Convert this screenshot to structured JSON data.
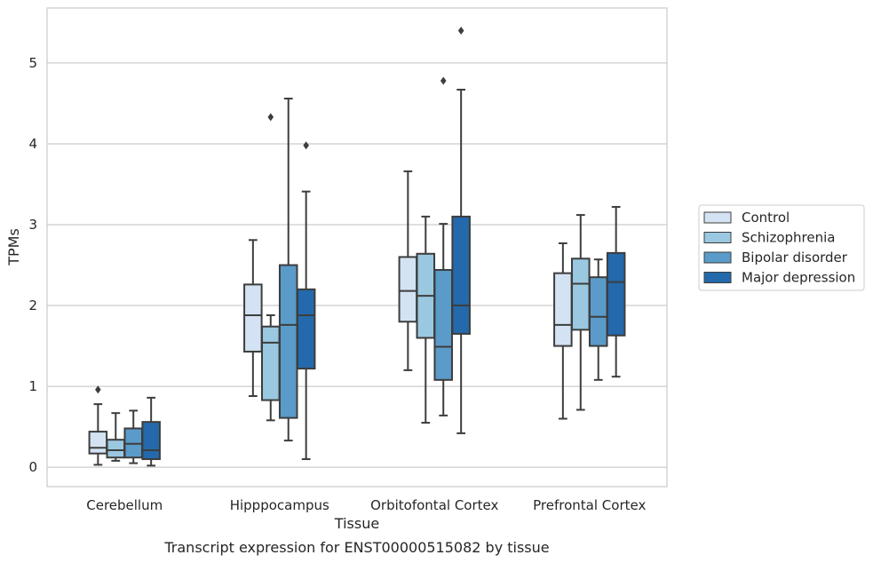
{
  "caption": "Transcript expression for ENST00000515082 by tissue",
  "chart_data": {
    "type": "box",
    "xlabel": "Tissue",
    "ylabel": "TPMs",
    "ylim": [
      -0.24,
      5.68
    ],
    "yticks": [
      0,
      1,
      2,
      3,
      4,
      5
    ],
    "grid": "horizontal",
    "legend_position": "right",
    "categories": [
      "Cerebellum",
      "Hipppocampus",
      "Orbitofontal Cortex",
      "Prefrontal Cortex"
    ],
    "series": [
      {
        "name": "Control",
        "color": "#d3e3f3",
        "boxes": [
          {
            "whisker_low": 0.03,
            "q1": 0.17,
            "median": 0.24,
            "q3": 0.44,
            "whisker_high": 0.78,
            "outliers": [
              0.96
            ]
          },
          {
            "whisker_low": 0.88,
            "q1": 1.43,
            "median": 1.88,
            "q3": 2.26,
            "whisker_high": 2.81,
            "outliers": []
          },
          {
            "whisker_low": 1.2,
            "q1": 1.8,
            "median": 2.18,
            "q3": 2.6,
            "whisker_high": 3.66,
            "outliers": []
          },
          {
            "whisker_low": 0.6,
            "q1": 1.5,
            "median": 1.76,
            "q3": 2.4,
            "whisker_high": 2.77,
            "outliers": []
          }
        ]
      },
      {
        "name": "Schizophrenia",
        "color": "#9ac8e0",
        "boxes": [
          {
            "whisker_low": 0.08,
            "q1": 0.12,
            "median": 0.21,
            "q3": 0.34,
            "whisker_high": 0.67,
            "outliers": []
          },
          {
            "whisker_low": 0.58,
            "q1": 0.83,
            "median": 1.54,
            "q3": 1.74,
            "whisker_high": 1.88,
            "outliers": [
              4.33
            ]
          },
          {
            "whisker_low": 0.55,
            "q1": 1.6,
            "median": 2.12,
            "q3": 2.64,
            "whisker_high": 3.1,
            "outliers": []
          },
          {
            "whisker_low": 0.71,
            "q1": 1.7,
            "median": 2.27,
            "q3": 2.58,
            "whisker_high": 3.12,
            "outliers": []
          }
        ]
      },
      {
        "name": "Bipolar disorder",
        "color": "#5a9bc9",
        "boxes": [
          {
            "whisker_low": 0.05,
            "q1": 0.12,
            "median": 0.29,
            "q3": 0.48,
            "whisker_high": 0.7,
            "outliers": []
          },
          {
            "whisker_low": 0.33,
            "q1": 0.61,
            "median": 1.76,
            "q3": 2.5,
            "whisker_high": 4.56,
            "outliers": []
          },
          {
            "whisker_low": 0.64,
            "q1": 1.08,
            "median": 1.49,
            "q3": 2.44,
            "whisker_high": 3.01,
            "outliers": [
              4.78
            ]
          },
          {
            "whisker_low": 1.08,
            "q1": 1.5,
            "median": 1.86,
            "q3": 2.35,
            "whisker_high": 2.57,
            "outliers": []
          }
        ]
      },
      {
        "name": "Major depression",
        "color": "#2469ab",
        "boxes": [
          {
            "whisker_low": 0.02,
            "q1": 0.1,
            "median": 0.21,
            "q3": 0.56,
            "whisker_high": 0.86,
            "outliers": []
          },
          {
            "whisker_low": 0.1,
            "q1": 1.22,
            "median": 1.88,
            "q3": 2.2,
            "whisker_high": 3.41,
            "outliers": [
              3.98
            ]
          },
          {
            "whisker_low": 0.42,
            "q1": 1.65,
            "median": 2.0,
            "q3": 3.1,
            "whisker_high": 4.67,
            "outliers": [
              5.4
            ]
          },
          {
            "whisker_low": 1.12,
            "q1": 1.63,
            "median": 2.29,
            "q3": 2.65,
            "whisker_high": 3.22,
            "outliers": []
          }
        ]
      }
    ]
  }
}
